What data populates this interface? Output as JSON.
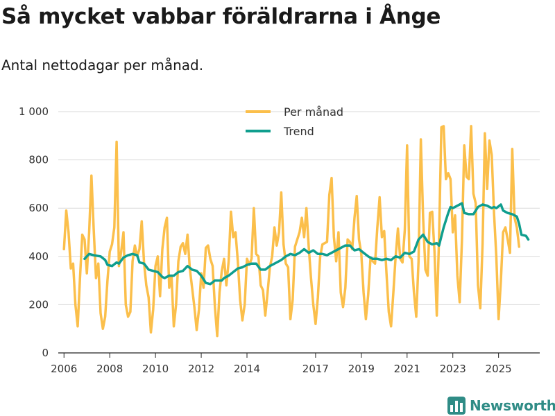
{
  "header": {
    "title": "Så mycket vabbar föräldrarna i Ånge",
    "subtitle": "Antal nettodagar per månad."
  },
  "brand": {
    "name": "Newsworthy",
    "icon": "bar-chart-logo-icon"
  },
  "colors": {
    "per_manad": "#fbbf4b",
    "trend": "#0f9e8e",
    "grid": "#d9d9d9",
    "brand": "#2f8c86"
  },
  "chart_data": {
    "type": "line",
    "title": "Så mycket vabbar föräldrarna i Ånge",
    "subtitle": "Antal nettodagar per månad.",
    "xlabel": "",
    "ylabel": "",
    "ylim": [
      0,
      1000
    ],
    "yticks": [
      0,
      200,
      400,
      600,
      800,
      1000
    ],
    "ytick_labels": [
      "0",
      "200",
      "400",
      "600",
      "800",
      "1 000"
    ],
    "xtick_positions": [
      2006,
      2008,
      2010,
      2012,
      2014,
      2017,
      2019,
      2021,
      2023,
      2025
    ],
    "xtick_labels": [
      "2006",
      "2008",
      "2010",
      "2012",
      "2014",
      "2017",
      "2019",
      "2021",
      "2023",
      "2025"
    ],
    "grid": true,
    "legend_position": "top-center",
    "series": [
      {
        "name": "Per månad",
        "points": [
          [
            2006.0,
            430
          ],
          [
            2006.1,
            590
          ],
          [
            2006.2,
            500
          ],
          [
            2006.3,
            350
          ],
          [
            2006.4,
            370
          ],
          [
            2006.5,
            200
          ],
          [
            2006.6,
            110
          ],
          [
            2006.7,
            310
          ],
          [
            2006.8,
            490
          ],
          [
            2006.9,
            470
          ],
          [
            2007.0,
            330
          ],
          [
            2007.1,
            500
          ],
          [
            2007.2,
            735
          ],
          [
            2007.3,
            510
          ],
          [
            2007.4,
            310
          ],
          [
            2007.5,
            370
          ],
          [
            2007.6,
            165
          ],
          [
            2007.7,
            100
          ],
          [
            2007.8,
            150
          ],
          [
            2007.9,
            300
          ],
          [
            2008.0,
            420
          ],
          [
            2008.1,
            450
          ],
          [
            2008.2,
            520
          ],
          [
            2008.3,
            875
          ],
          [
            2008.4,
            360
          ],
          [
            2008.5,
            420
          ],
          [
            2008.6,
            500
          ],
          [
            2008.7,
            200
          ],
          [
            2008.8,
            150
          ],
          [
            2008.9,
            170
          ],
          [
            2009.0,
            380
          ],
          [
            2009.1,
            445
          ],
          [
            2009.2,
            400
          ],
          [
            2009.3,
            430
          ],
          [
            2009.4,
            545
          ],
          [
            2009.5,
            375
          ],
          [
            2009.6,
            280
          ],
          [
            2009.7,
            230
          ],
          [
            2009.8,
            85
          ],
          [
            2009.9,
            180
          ],
          [
            2010.0,
            360
          ],
          [
            2010.1,
            400
          ],
          [
            2010.2,
            235
          ],
          [
            2010.3,
            430
          ],
          [
            2010.4,
            520
          ],
          [
            2010.5,
            560
          ],
          [
            2010.6,
            270
          ],
          [
            2010.7,
            320
          ],
          [
            2010.8,
            110
          ],
          [
            2010.9,
            200
          ],
          [
            2011.0,
            380
          ],
          [
            2011.1,
            440
          ],
          [
            2011.2,
            455
          ],
          [
            2011.3,
            410
          ],
          [
            2011.4,
            490
          ],
          [
            2011.5,
            350
          ],
          [
            2011.6,
            270
          ],
          [
            2011.7,
            190
          ],
          [
            2011.8,
            95
          ],
          [
            2011.9,
            180
          ],
          [
            2012.0,
            330
          ],
          [
            2012.1,
            270
          ],
          [
            2012.2,
            435
          ],
          [
            2012.3,
            445
          ],
          [
            2012.4,
            390
          ],
          [
            2012.5,
            360
          ],
          [
            2012.6,
            190
          ],
          [
            2012.7,
            70
          ],
          [
            2012.8,
            250
          ],
          [
            2012.9,
            340
          ],
          [
            2013.0,
            390
          ],
          [
            2013.1,
            280
          ],
          [
            2013.2,
            380
          ],
          [
            2013.3,
            585
          ],
          [
            2013.4,
            480
          ],
          [
            2013.5,
            500
          ],
          [
            2013.6,
            380
          ],
          [
            2013.7,
            220
          ],
          [
            2013.8,
            135
          ],
          [
            2013.9,
            200
          ],
          [
            2014.0,
            390
          ],
          [
            2014.1,
            365
          ],
          [
            2014.2,
            390
          ],
          [
            2014.3,
            600
          ],
          [
            2014.4,
            410
          ],
          [
            2014.5,
            400
          ],
          [
            2014.6,
            280
          ],
          [
            2014.7,
            260
          ],
          [
            2014.8,
            155
          ],
          [
            2014.9,
            250
          ],
          [
            2015.0,
            355
          ],
          [
            2015.1,
            400
          ],
          [
            2015.2,
            520
          ],
          [
            2015.3,
            445
          ],
          [
            2015.4,
            500
          ],
          [
            2015.5,
            665
          ],
          [
            2015.6,
            450
          ],
          [
            2015.7,
            370
          ],
          [
            2015.8,
            355
          ],
          [
            2015.9,
            140
          ],
          [
            2016.0,
            220
          ],
          [
            2016.1,
            440
          ],
          [
            2016.2,
            470
          ],
          [
            2016.3,
            500
          ],
          [
            2016.4,
            560
          ],
          [
            2016.5,
            480
          ],
          [
            2016.6,
            600
          ],
          [
            2016.7,
            440
          ],
          [
            2016.8,
            310
          ],
          [
            2016.9,
            200
          ],
          [
            2017.0,
            120
          ],
          [
            2017.1,
            230
          ],
          [
            2017.2,
            400
          ],
          [
            2017.3,
            450
          ],
          [
            2017.4,
            455
          ],
          [
            2017.5,
            460
          ],
          [
            2017.6,
            655
          ],
          [
            2017.7,
            725
          ],
          [
            2017.8,
            480
          ],
          [
            2017.9,
            380
          ],
          [
            2018.0,
            500
          ],
          [
            2018.1,
            250
          ],
          [
            2018.2,
            190
          ],
          [
            2018.3,
            270
          ],
          [
            2018.4,
            470
          ],
          [
            2018.5,
            460
          ],
          [
            2018.6,
            430
          ],
          [
            2018.7,
            560
          ],
          [
            2018.8,
            650
          ],
          [
            2018.9,
            470
          ],
          [
            2019.0,
            410
          ],
          [
            2019.1,
            250
          ],
          [
            2019.2,
            140
          ],
          [
            2019.3,
            240
          ],
          [
            2019.4,
            390
          ],
          [
            2019.5,
            380
          ],
          [
            2019.6,
            370
          ],
          [
            2019.7,
            520
          ],
          [
            2019.8,
            645
          ],
          [
            2019.9,
            480
          ],
          [
            2020.0,
            505
          ],
          [
            2020.1,
            330
          ],
          [
            2020.2,
            170
          ],
          [
            2020.3,
            110
          ],
          [
            2020.4,
            250
          ],
          [
            2020.5,
            400
          ],
          [
            2020.6,
            515
          ],
          [
            2020.7,
            390
          ],
          [
            2020.8,
            375
          ],
          [
            2020.9,
            510
          ],
          [
            2021.0,
            860
          ],
          [
            2021.1,
            400
          ],
          [
            2021.2,
            390
          ],
          [
            2021.3,
            250
          ],
          [
            2021.4,
            150
          ],
          [
            2021.5,
            380
          ],
          [
            2021.6,
            885
          ],
          [
            2021.7,
            560
          ],
          [
            2021.8,
            345
          ],
          [
            2021.9,
            320
          ],
          [
            2022.0,
            580
          ],
          [
            2022.1,
            585
          ],
          [
            2022.2,
            420
          ],
          [
            2022.3,
            155
          ],
          [
            2022.4,
            480
          ],
          [
            2022.5,
            935
          ],
          [
            2022.6,
            940
          ],
          [
            2022.7,
            720
          ],
          [
            2022.8,
            745
          ],
          [
            2022.9,
            720
          ],
          [
            2023.0,
            500
          ],
          [
            2023.1,
            570
          ],
          [
            2023.2,
            320
          ],
          [
            2023.3,
            210
          ],
          [
            2023.4,
            470
          ],
          [
            2023.5,
            860
          ],
          [
            2023.6,
            730
          ],
          [
            2023.7,
            720
          ],
          [
            2023.8,
            940
          ],
          [
            2023.9,
            660
          ],
          [
            2024.0,
            620
          ],
          [
            2024.1,
            280
          ],
          [
            2024.2,
            185
          ],
          [
            2024.3,
            450
          ],
          [
            2024.4,
            910
          ],
          [
            2024.5,
            680
          ],
          [
            2024.6,
            880
          ],
          [
            2024.7,
            820
          ],
          [
            2024.8,
            580
          ],
          [
            2024.9,
            400
          ],
          [
            2025.0,
            140
          ],
          [
            2025.1,
            300
          ],
          [
            2025.2,
            500
          ],
          [
            2025.3,
            520
          ],
          [
            2025.4,
            470
          ],
          [
            2025.5,
            415
          ],
          [
            2025.6,
            845
          ],
          [
            2025.7,
            560
          ],
          [
            2025.8,
            520
          ],
          [
            2025.9,
            440
          ]
        ]
      },
      {
        "name": "Trend",
        "points": [
          [
            2006.9,
            390
          ],
          [
            2007.1,
            410
          ],
          [
            2007.3,
            405
          ],
          [
            2007.6,
            400
          ],
          [
            2007.8,
            385
          ],
          [
            2007.9,
            365
          ],
          [
            2008.1,
            360
          ],
          [
            2008.3,
            375
          ],
          [
            2008.4,
            370
          ],
          [
            2008.6,
            395
          ],
          [
            2008.8,
            405
          ],
          [
            2009.0,
            410
          ],
          [
            2009.2,
            405
          ],
          [
            2009.3,
            375
          ],
          [
            2009.5,
            370
          ],
          [
            2009.7,
            345
          ],
          [
            2009.9,
            340
          ],
          [
            2010.1,
            335
          ],
          [
            2010.3,
            315
          ],
          [
            2010.4,
            310
          ],
          [
            2010.6,
            320
          ],
          [
            2010.8,
            320
          ],
          [
            2011.0,
            335
          ],
          [
            2011.2,
            340
          ],
          [
            2011.4,
            360
          ],
          [
            2011.6,
            345
          ],
          [
            2011.8,
            340
          ],
          [
            2012.0,
            320
          ],
          [
            2012.2,
            290
          ],
          [
            2012.4,
            285
          ],
          [
            2012.6,
            300
          ],
          [
            2012.9,
            300
          ],
          [
            2013.0,
            310
          ],
          [
            2013.2,
            320
          ],
          [
            2013.4,
            335
          ],
          [
            2013.6,
            350
          ],
          [
            2013.8,
            355
          ],
          [
            2014.0,
            365
          ],
          [
            2014.2,
            370
          ],
          [
            2014.4,
            370
          ],
          [
            2014.6,
            345
          ],
          [
            2014.8,
            345
          ],
          [
            2015.0,
            360
          ],
          [
            2015.3,
            375
          ],
          [
            2015.5,
            385
          ],
          [
            2015.7,
            400
          ],
          [
            2015.9,
            410
          ],
          [
            2016.1,
            405
          ],
          [
            2016.3,
            415
          ],
          [
            2016.5,
            430
          ],
          [
            2016.7,
            415
          ],
          [
            2016.9,
            425
          ],
          [
            2017.1,
            410
          ],
          [
            2017.3,
            410
          ],
          [
            2017.5,
            405
          ],
          [
            2017.7,
            415
          ],
          [
            2017.9,
            425
          ],
          [
            2018.1,
            435
          ],
          [
            2018.3,
            445
          ],
          [
            2018.5,
            445
          ],
          [
            2018.7,
            425
          ],
          [
            2018.9,
            430
          ],
          [
            2019.1,
            415
          ],
          [
            2019.3,
            400
          ],
          [
            2019.5,
            390
          ],
          [
            2019.7,
            390
          ],
          [
            2019.9,
            385
          ],
          [
            2020.1,
            390
          ],
          [
            2020.3,
            385
          ],
          [
            2020.5,
            400
          ],
          [
            2020.7,
            395
          ],
          [
            2020.9,
            415
          ],
          [
            2021.1,
            410
          ],
          [
            2021.3,
            420
          ],
          [
            2021.5,
            470
          ],
          [
            2021.7,
            490
          ],
          [
            2021.9,
            460
          ],
          [
            2022.1,
            450
          ],
          [
            2022.3,
            455
          ],
          [
            2022.4,
            445
          ],
          [
            2022.6,
            520
          ],
          [
            2022.8,
            580
          ],
          [
            2022.9,
            605
          ],
          [
            2023.0,
            600
          ],
          [
            2023.2,
            610
          ],
          [
            2023.4,
            620
          ],
          [
            2023.5,
            580
          ],
          [
            2023.7,
            575
          ],
          [
            2023.9,
            575
          ],
          [
            2024.1,
            605
          ],
          [
            2024.3,
            615
          ],
          [
            2024.5,
            610
          ],
          [
            2024.7,
            600
          ],
          [
            2024.8,
            605
          ],
          [
            2024.9,
            600
          ],
          [
            2025.1,
            615
          ],
          [
            2025.2,
            590
          ],
          [
            2025.4,
            580
          ],
          [
            2025.6,
            575
          ],
          [
            2025.7,
            570
          ],
          [
            2025.8,
            565
          ],
          [
            2025.9,
            535
          ],
          [
            2026.0,
            490
          ],
          [
            2026.2,
            485
          ],
          [
            2026.3,
            470
          ]
        ]
      }
    ]
  }
}
